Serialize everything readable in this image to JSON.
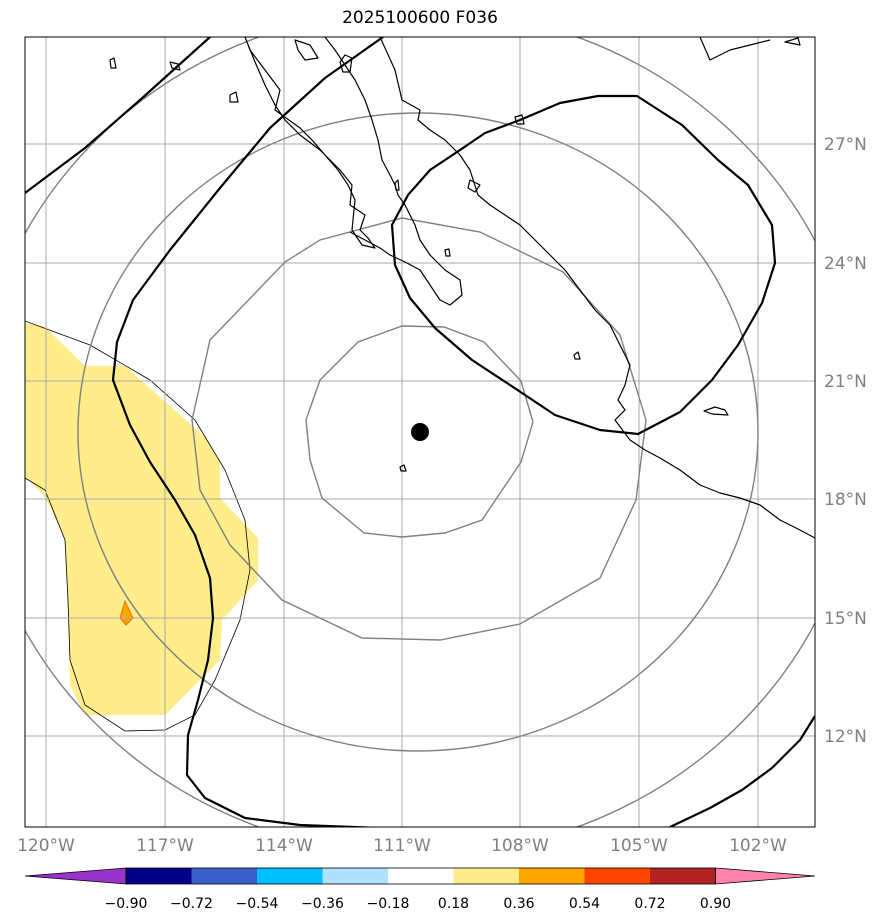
{
  "title": "2025100600 F036",
  "map": {
    "lon_labels": [
      "120°W",
      "117°W",
      "114°W",
      "111°W",
      "108°W",
      "105°W",
      "102°W"
    ],
    "lat_labels": [
      "27°N",
      "24°N",
      "21°N",
      "18°N",
      "15°N",
      "12°N"
    ],
    "center_marker": {
      "lon": -110.6,
      "lat": 19.7
    },
    "colors": {
      "gridline": "#aaaaaa",
      "range_ring": "#808080",
      "coast": "#000000",
      "contour": "#000000"
    }
  },
  "colorbar": {
    "tick_labels": [
      "−0.90",
      "−0.72",
      "−0.54",
      "−0.36",
      "−0.18",
      "0.18",
      "0.36",
      "0.54",
      "0.72",
      "0.90"
    ],
    "colors": [
      "#9933cc",
      "#000088",
      "#3a5fcd",
      "#00bfff",
      "#b0e2ff",
      "#ffffff",
      "#ffec8b",
      "#ffa500",
      "#ff4500",
      "#b22222",
      "#ff82ab"
    ]
  }
}
